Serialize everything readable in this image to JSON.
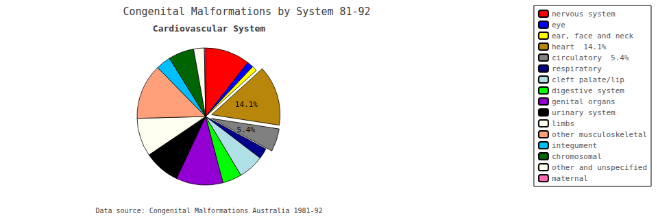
{
  "chart_data": {
    "type": "pie",
    "title": "Congenital Malformations by System 81-92",
    "subtitle": "Cardiovascular System",
    "footnote": "Data source: Congenital Malformations Australia 1981-92",
    "categories": [
      "nervous system",
      "eye",
      "ear, face and neck",
      "heart  14.1%",
      "circulatory  5.4%",
      "respiratory",
      "cleft palate/lip",
      "digestive system",
      "genital organs",
      "urinary system",
      "limbs",
      "other musculoskeletal",
      "integument",
      "chromosomal",
      "other and unspecified",
      "maternal"
    ],
    "values": [
      10.5,
      1.5,
      1.2,
      14.1,
      5.4,
      2.5,
      6.0,
      4.5,
      11.0,
      8.5,
      9.0,
      13.0,
      3.5,
      6.0,
      2.5,
      0.3
    ],
    "value_labels": [
      null,
      null,
      null,
      "14.1%",
      "5.4%",
      null,
      null,
      null,
      null,
      null,
      null,
      null,
      null,
      null,
      null,
      null
    ],
    "colors": [
      "#ff0000",
      "#0000ff",
      "#ffff00",
      "#b8860b",
      "#808080",
      "#00008b",
      "#b0e0e6",
      "#00ff00",
      "#9400d3",
      "#000000",
      "#fffff0",
      "#ffa07a",
      "#00bfff",
      "#006400",
      "#fffff0",
      "#ff69b4"
    ],
    "legend": "right"
  }
}
